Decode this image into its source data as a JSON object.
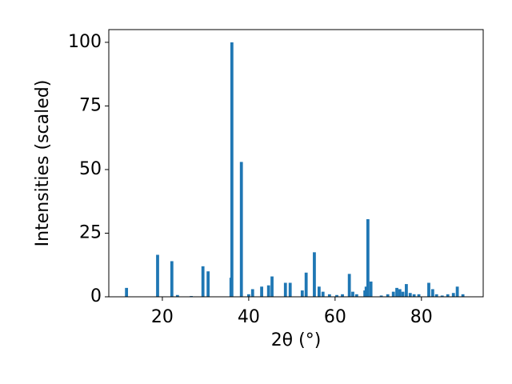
{
  "chart_data": {
    "type": "bar",
    "xlabel": "2θ (°)",
    "ylabel": "Intensities (scaled)",
    "x": [
      11.7,
      18.9,
      22.2,
      23.5,
      26.7,
      29.4,
      30.6,
      35.9,
      36.1,
      38.3,
      40.0,
      40.9,
      43.0,
      44.6,
      45.4,
      48.5,
      49.6,
      52.4,
      53.3,
      55.2,
      56.3,
      57.2,
      58.7,
      60.4,
      61.7,
      63.3,
      64.1,
      65.0,
      66.9,
      67.2,
      67.6,
      68.3,
      70.7,
      72.2,
      73.5,
      74.3,
      75.0,
      75.7,
      76.5,
      77.4,
      78.3,
      79.4,
      81.7,
      82.6,
      83.5,
      84.8,
      86.1,
      87.4,
      88.3,
      89.6
    ],
    "values": [
      3.5,
      16.5,
      14,
      0.7,
      0.3,
      12,
      10,
      7.5,
      100,
      53,
      1,
      3,
      4,
      4.5,
      8,
      5.5,
      5.5,
      2.5,
      9.5,
      17.5,
      4,
      2,
      1,
      0.7,
      1,
      9,
      2,
      1,
      2.5,
      4,
      30.5,
      6,
      0.5,
      1,
      2,
      3.5,
      3,
      2,
      5,
      1.5,
      1,
      1,
      5.5,
      3,
      1,
      0.5,
      1,
      1.5,
      4,
      1
    ],
    "color": "#1f77b4",
    "xlim": [
      7.6,
      94.3
    ],
    "xticks": [
      20,
      40,
      60,
      80
    ],
    "ylim": [
      0,
      105
    ],
    "yticks": [
      0,
      25,
      50,
      75,
      100
    ]
  }
}
